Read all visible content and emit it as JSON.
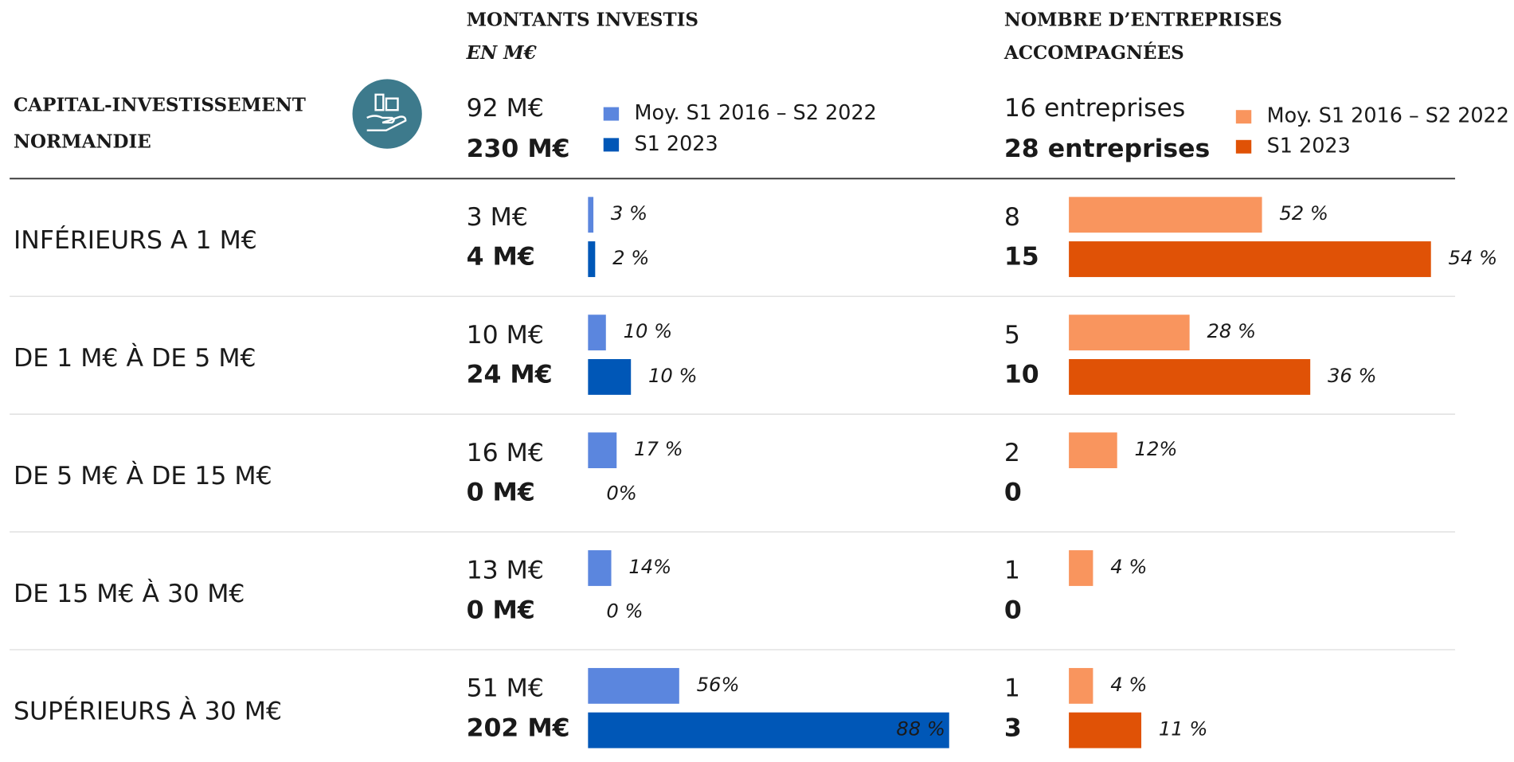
{
  "header": {
    "title_lines": [
      "CAPITAL-INVESTISSEMENT",
      "NORMANDIE"
    ]
  },
  "amounts": {
    "title": "MONTANTS INVESTIS",
    "unit": "EN M€",
    "totals": [
      "92 M€",
      "230 M€"
    ],
    "legend": [
      {
        "name": "Moy. S1 2016 – S2 2022",
        "color": "#5b86de"
      },
      {
        "name": "S1 2023",
        "color": "#0057b7"
      }
    ]
  },
  "companies": {
    "title_lines": [
      "NOMBRE D’ENTREPRISES",
      "ACCOMPAGNÉES"
    ],
    "totals": [
      "16 entreprises",
      "28 entreprises"
    ],
    "legend": [
      {
        "name": "Moy. S1 2016 – S2 2022",
        "color": "#f9955e"
      },
      {
        "name": "S1 2023",
        "color": "#e05206"
      }
    ]
  },
  "rows": [
    {
      "label": "INFÉRIEURS A 1 M€",
      "amounts": {
        "values": [
          3,
          4
        ],
        "value_labels": [
          "3 M€",
          "4 M€"
        ],
        "shares": [
          "3 %",
          "2 %"
        ]
      },
      "companies": {
        "values": [
          8,
          15
        ],
        "shares": [
          "52 %",
          "54 %"
        ]
      }
    },
    {
      "label": "DE 1 M€ À DE 5 M€",
      "amounts": {
        "values": [
          10,
          24
        ],
        "value_labels": [
          "10 M€",
          "24 M€"
        ],
        "shares": [
          "10 %",
          "10 %"
        ]
      },
      "companies": {
        "values": [
          5,
          10
        ],
        "shares": [
          "28 %",
          "36 %"
        ]
      }
    },
    {
      "label": "DE 5 M€ À DE 15 M€",
      "amounts": {
        "values": [
          16,
          0
        ],
        "value_labels": [
          "16 M€",
          "0 M€"
        ],
        "shares": [
          "17 %",
          "0%"
        ]
      },
      "companies": {
        "values": [
          2,
          0
        ],
        "shares": [
          "12%",
          null
        ]
      }
    },
    {
      "label": "DE 15 M€ À 30 M€",
      "amounts": {
        "values": [
          13,
          0
        ],
        "value_labels": [
          "13 M€",
          "0 M€"
        ],
        "shares": [
          "14%",
          "0 %"
        ]
      },
      "companies": {
        "values": [
          1,
          0
        ],
        "shares": [
          "4 %",
          null
        ]
      }
    },
    {
      "label": "SUPÉRIEURS À 30 M€",
      "amounts": {
        "values": [
          51,
          202
        ],
        "value_labels": [
          "51 M€",
          "202 M€"
        ],
        "shares": [
          "56%",
          "88 %"
        ]
      },
      "companies": {
        "values": [
          1,
          3
        ],
        "shares": [
          "4 %",
          "11 %"
        ]
      }
    }
  ]
}
